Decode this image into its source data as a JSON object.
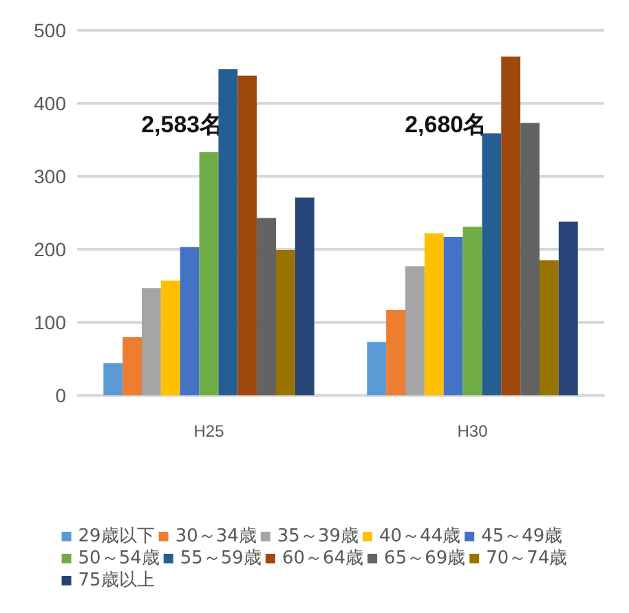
{
  "chart_data": {
    "type": "bar",
    "categories": [
      "H25",
      "H30"
    ],
    "series": [
      {
        "name": "29歳以下",
        "color": "#5b9bd5",
        "values": [
          44,
          73
        ]
      },
      {
        "name": "30～34歳",
        "color": "#ed7d31",
        "values": [
          80,
          117
        ]
      },
      {
        "name": "35～39歳",
        "color": "#a5a5a5",
        "values": [
          147,
          177
        ]
      },
      {
        "name": "40～44歳",
        "color": "#ffc000",
        "values": [
          157,
          222
        ]
      },
      {
        "name": "45～49歳",
        "color": "#4472c4",
        "values": [
          203,
          217
        ]
      },
      {
        "name": "50～54歳",
        "color": "#70ad47",
        "values": [
          333,
          231
        ]
      },
      {
        "name": "55～59歳",
        "color": "#255e91",
        "values": [
          447,
          359
        ]
      },
      {
        "name": "60～64歳",
        "color": "#9e480e",
        "values": [
          438,
          464
        ]
      },
      {
        "name": "65～69歳",
        "color": "#636363",
        "values": [
          243,
          373
        ]
      },
      {
        "name": "70～74歳",
        "color": "#997300",
        "values": [
          199,
          185
        ]
      },
      {
        "name": "75歳以上",
        "color": "#264478",
        "values": [
          271,
          238
        ]
      }
    ],
    "ylim": [
      0,
      500
    ],
    "yticks": [
      0,
      100,
      200,
      300,
      400,
      500
    ],
    "grid": "y",
    "legend": "bottom",
    "annotations": [
      "2,583名",
      "2,680名"
    ]
  }
}
